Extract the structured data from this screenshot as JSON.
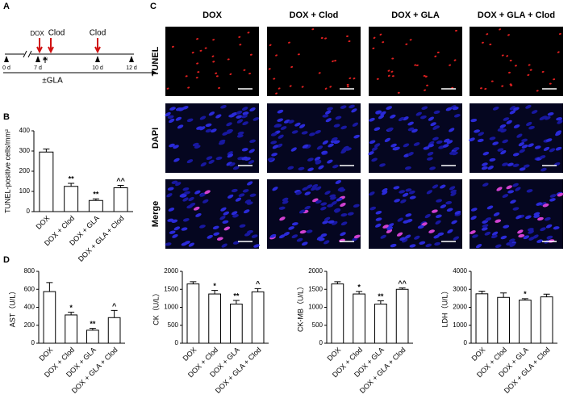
{
  "panel_labels": [
    "A",
    "B",
    "C",
    "D"
  ],
  "timeline": {
    "drugs": [
      "DOX",
      "Clod",
      "Clod"
    ],
    "hours": "(h)",
    "days": [
      "0 d",
      "7 d",
      "10 d",
      "12 d"
    ],
    "treatment": "±GLA"
  },
  "images": {
    "columns": [
      "DOX",
      "DOX + Clod",
      "DOX + GLA",
      "DOX + GLA + Clod"
    ],
    "rows": [
      "TUNEL",
      "DAPI",
      "Merge"
    ],
    "row_colors": [
      "#e01010",
      "#1a1ae0",
      "#000000"
    ]
  },
  "chart_data": [
    {
      "type": "bar",
      "ylabel": "TUNEL-positive cells/mm²",
      "categories": [
        "DOX",
        "DOX + Clod",
        "DOX + GLA",
        "DOX + GLA + Clod"
      ],
      "values": [
        295,
        125,
        55,
        118
      ],
      "errors": [
        15,
        15,
        8,
        12
      ],
      "annotations": [
        null,
        "**",
        "**",
        "^^"
      ],
      "ylim": [
        0,
        400
      ],
      "yticks": [
        0,
        100,
        200,
        300,
        400
      ],
      "color": "#ffffff"
    },
    {
      "type": "bar",
      "ylabel": "AST（U/L）",
      "categories": [
        "DOX",
        "DOX + Clod",
        "DOX + GLA",
        "DOX + GLA + Clod"
      ],
      "values": [
        575,
        315,
        145,
        285
      ],
      "errors": [
        100,
        30,
        20,
        80
      ],
      "annotations": [
        null,
        "*",
        "**",
        "^"
      ],
      "ylim": [
        0,
        800
      ],
      "yticks": [
        0,
        200,
        400,
        600,
        800
      ],
      "color": "#ffffff"
    },
    {
      "type": "bar",
      "ylabel": "CK（U/L）",
      "categories": [
        "DOX",
        "DOX + Clod",
        "DOX + GLA",
        "DOX + GLA + Clod"
      ],
      "values": [
        1650,
        1370,
        1090,
        1430
      ],
      "errors": [
        60,
        100,
        100,
        90
      ],
      "annotations": [
        null,
        "*",
        "**",
        "^"
      ],
      "ylim": [
        0,
        2000
      ],
      "yticks": [
        0,
        500,
        1000,
        1500,
        2000
      ],
      "color": "#ffffff"
    },
    {
      "type": "bar",
      "ylabel": "CK-MB（U/L）",
      "categories": [
        "DOX",
        "DOX + Clod",
        "DOX + GLA",
        "DOX + GLA + Clod"
      ],
      "values": [
        1650,
        1370,
        1090,
        1500
      ],
      "errors": [
        60,
        70,
        90,
        40
      ],
      "annotations": [
        null,
        "*",
        "**",
        "^^"
      ],
      "ylim": [
        0,
        2000
      ],
      "yticks": [
        0,
        500,
        1000,
        1500,
        2000
      ],
      "color": "#ffffff"
    },
    {
      "type": "bar",
      "ylabel": "LDH（U/L）",
      "categories": [
        "DOX",
        "DOX + Clod",
        "DOX + GLA",
        "DOX + GLA + Clod"
      ],
      "values": [
        2750,
        2550,
        2400,
        2580
      ],
      "errors": [
        150,
        250,
        80,
        150
      ],
      "annotations": [
        null,
        null,
        "*",
        null
      ],
      "ylim": [
        0,
        4000
      ],
      "yticks": [
        0,
        1000,
        2000,
        3000,
        4000
      ],
      "color": "#ffffff"
    }
  ]
}
